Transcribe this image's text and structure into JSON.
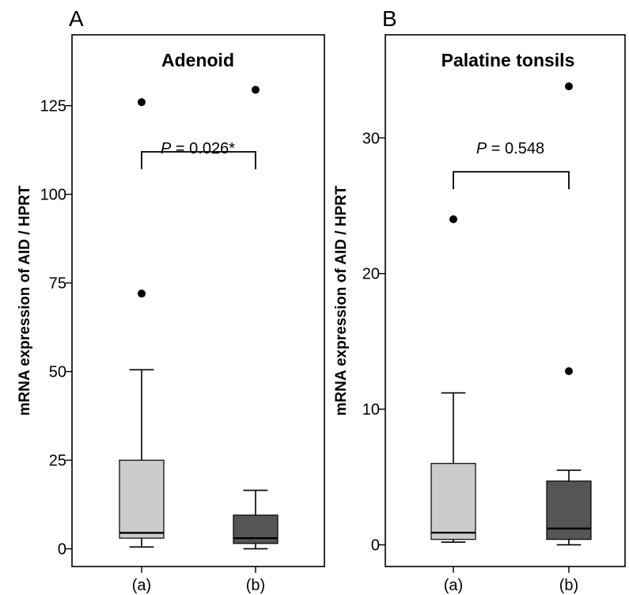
{
  "figure": {
    "panels": [
      {
        "letter": "A",
        "title": "Adenoid",
        "ylabel": "mRNA expression of  AID / HPRT",
        "p_label": {
          "prefix": "P",
          "text": " = 0.026*"
        }
      },
      {
        "letter": "B",
        "title": "Palatine tonsils",
        "ylabel": "mRNA expression of  AID / HPRT",
        "p_label": {
          "prefix": "P",
          "text": " = 0.548"
        }
      }
    ]
  },
  "chart_data": [
    {
      "type": "box",
      "title": "Adenoid",
      "panel_label": "A",
      "ylabel": "mRNA expression of  AID / HPRT",
      "categories": [
        "(a)",
        "(b)"
      ],
      "ylim": [
        -5,
        145
      ],
      "yticks": [
        0,
        25,
        50,
        75,
        100,
        125
      ],
      "boxes": [
        {
          "category": "(a)",
          "whisker_low": 0.5,
          "q1": 3,
          "median": 4.5,
          "q3": 25,
          "whisker_high": 50.5,
          "outliers": [
            72,
            126
          ]
        },
        {
          "category": "(b)",
          "whisker_low": 0,
          "q1": 1.5,
          "median": 3,
          "q3": 9.5,
          "whisker_high": 16.5,
          "outliers": [
            129.5
          ]
        }
      ],
      "colors": {
        "(a)": "#cccccc",
        "(b)": "#555555"
      },
      "annotation": {
        "text": "P = 0.026*",
        "between": [
          "(a)",
          "(b)"
        ],
        "y": 112
      }
    },
    {
      "type": "box",
      "title": "Palatine tonsils",
      "panel_label": "B",
      "ylabel": "mRNA expression of  AID / HPRT",
      "categories": [
        "(a)",
        "(b)"
      ],
      "ylim": [
        -1.6,
        37.6
      ],
      "yticks": [
        0,
        10,
        20,
        30
      ],
      "boxes": [
        {
          "category": "(a)",
          "whisker_low": 0.2,
          "q1": 0.4,
          "median": 0.9,
          "q3": 6,
          "whisker_high": 11.2,
          "outliers": [
            24
          ]
        },
        {
          "category": "(b)",
          "whisker_low": 0,
          "q1": 0.4,
          "median": 1.2,
          "q3": 4.7,
          "whisker_high": 5.5,
          "outliers": [
            12.8,
            33.8
          ]
        }
      ],
      "colors": {
        "(a)": "#cccccc",
        "(b)": "#555555"
      },
      "annotation": {
        "text": "P = 0.548",
        "between": [
          "(a)",
          "(b)"
        ],
        "y": 27.5
      }
    }
  ]
}
